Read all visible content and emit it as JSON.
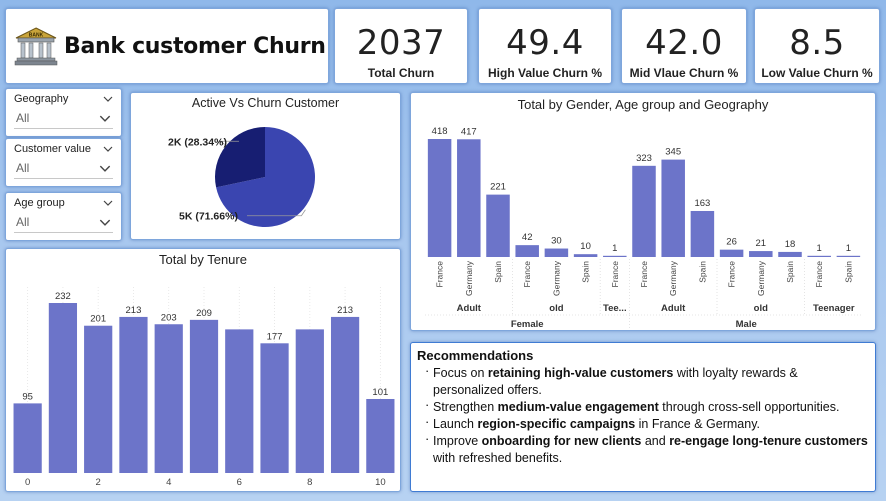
{
  "header": {
    "title": "Bank customer Churn",
    "logo_text": "BANK"
  },
  "kpis": [
    {
      "value": "2037",
      "label": "Total Churn"
    },
    {
      "value": "49.4",
      "label": "High Value Churn %"
    },
    {
      "value": "42.0",
      "label": "Mid Vlaue Churn %"
    },
    {
      "value": "8.5",
      "label": "Low Value Churn %"
    }
  ],
  "slicers": [
    {
      "title": "Geography",
      "value": "All"
    },
    {
      "title": "Customer value",
      "value": "All"
    },
    {
      "title": "Age group",
      "value": "All"
    }
  ],
  "colors": {
    "bar": "#6c74c9",
    "pie_main": "#3a45b0",
    "pie_minor": "#171e72",
    "accent_border": "#3f7bd3"
  },
  "chart_data": [
    {
      "type": "pie",
      "title": "Active Vs Churn Customer",
      "slices": [
        {
          "label": "2K (28.34%)",
          "value": 28.34
        },
        {
          "label": "5K (71.66%)",
          "value": 71.66
        }
      ]
    },
    {
      "type": "bar",
      "title": "Total by Tenure",
      "xlabel": "Tenure",
      "categories": [
        0,
        1,
        2,
        3,
        4,
        5,
        6,
        7,
        8,
        9,
        10
      ],
      "values": [
        95,
        232,
        201,
        213,
        203,
        209,
        196,
        177,
        196,
        213,
        101
      ],
      "data_labels": [
        "95",
        "232",
        "201",
        "213",
        "203",
        "209",
        "",
        "177",
        "",
        "213",
        "101"
      ],
      "tick_labels": [
        "0",
        "2",
        "4",
        "6",
        "8",
        "10"
      ],
      "tick_positions": [
        0,
        2,
        4,
        6,
        8,
        10
      ]
    },
    {
      "type": "bar",
      "title": "Total by Gender, Age group and Geography",
      "xlabel": "Geography",
      "values": [
        418,
        417,
        221,
        42,
        30,
        10,
        1,
        323,
        345,
        163,
        26,
        21,
        18,
        1,
        1
      ],
      "geography": [
        "France",
        "Germany",
        "Spain",
        "France",
        "Germany",
        "Spain",
        "France",
        "France",
        "Germany",
        "Spain",
        "France",
        "Germany",
        "Spain",
        "France",
        "Spain"
      ],
      "age_groups": [
        {
          "label": "Adult",
          "span": 3
        },
        {
          "label": "old",
          "span": 3
        },
        {
          "label": "Tee...",
          "span": 1
        },
        {
          "label": "Adult",
          "span": 3
        },
        {
          "label": "old",
          "span": 3
        },
        {
          "label": "Teenager",
          "span": 2
        }
      ],
      "genders": [
        {
          "label": "Female",
          "span": 7
        },
        {
          "label": "Male",
          "span": 8
        }
      ]
    }
  ],
  "recommendations": {
    "title": "Recommendations",
    "items": [
      {
        "before": "Focus on ",
        "bold": "retaining high-value customers",
        "after": " with loyalty rewards & personalized offers."
      },
      {
        "before": "Strengthen ",
        "bold": "medium-value engagement",
        "after": " through cross-sell opportunities."
      },
      {
        "before": "Launch ",
        "bold": "region-specific campaigns",
        "after": " in France & Germany."
      },
      {
        "before": "Improve ",
        "bold": "onboarding for new clients",
        "mid": " and ",
        "bold2": "re-engage long-tenure customers",
        "after": " with refreshed benefits."
      }
    ]
  }
}
